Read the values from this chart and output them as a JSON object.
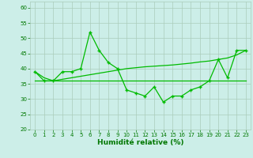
{
  "xlabel": "Humidité relative (%)",
  "background_color": "#cceee8",
  "grid_color": "#aaccbb",
  "line_color": "#00bb00",
  "ylim": [
    20,
    62
  ],
  "xlim": [
    -0.5,
    23.5
  ],
  "yticks": [
    20,
    25,
    30,
    35,
    40,
    45,
    50,
    55,
    60
  ],
  "xticks": [
    0,
    1,
    2,
    3,
    4,
    5,
    6,
    7,
    8,
    9,
    10,
    11,
    12,
    13,
    14,
    15,
    16,
    17,
    18,
    19,
    20,
    21,
    22,
    23
  ],
  "series_flat": [
    36,
    36,
    36,
    36,
    36,
    36,
    36,
    36,
    36,
    36,
    36,
    36,
    36,
    36,
    36,
    36,
    36,
    36,
    36,
    36,
    36,
    36,
    36,
    36
  ],
  "series_trend": [
    39,
    37,
    36,
    36.5,
    37,
    37.5,
    38,
    38.5,
    39,
    39.5,
    40,
    40.3,
    40.6,
    40.8,
    41,
    41.2,
    41.5,
    41.8,
    42.2,
    42.5,
    43,
    43.5,
    44.5,
    46
  ],
  "series_detail_x": [
    0,
    1,
    2,
    3,
    4,
    5,
    6,
    7,
    8,
    9,
    10,
    11,
    12,
    13,
    14,
    15,
    16,
    17,
    18,
    19,
    20,
    21,
    22,
    23
  ],
  "series_detail_y": [
    39,
    36,
    36,
    39,
    39,
    40,
    52,
    46,
    42,
    40,
    33,
    32,
    31,
    34,
    29,
    31,
    31,
    33,
    34,
    36,
    43,
    37,
    46,
    46
  ]
}
